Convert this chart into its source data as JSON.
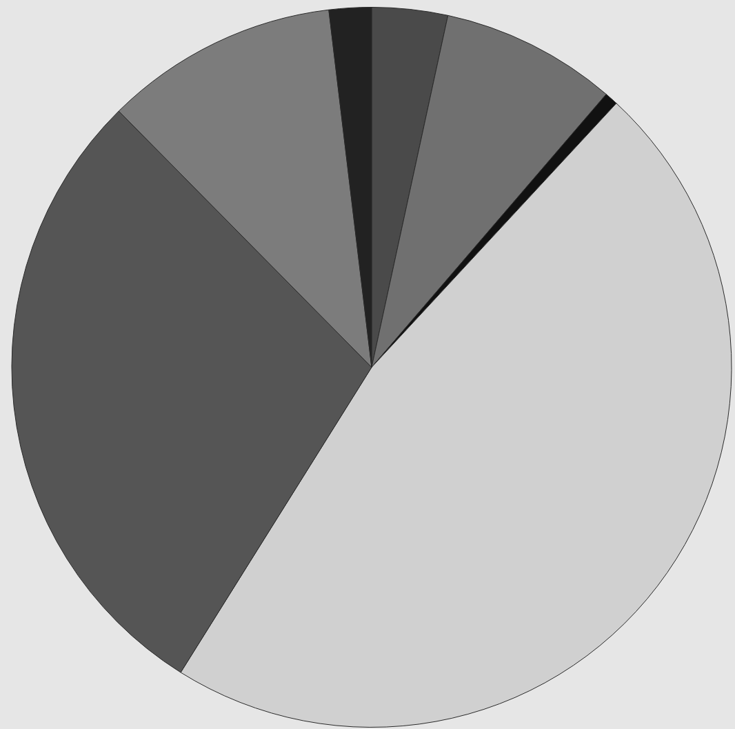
{
  "chart_data": {
    "type": "pie",
    "categories": [
      null,
      null,
      null,
      null,
      null,
      null,
      null
    ],
    "values": [
      3.4,
      7.9,
      0.6,
      47.0,
      28.7,
      10.5,
      1.9
    ],
    "colors": [
      "#4a4a4a",
      "#707070",
      "#111111",
      "#d0d0d0",
      "#555555",
      "#7c7c7c",
      "#222222"
    ]
  }
}
